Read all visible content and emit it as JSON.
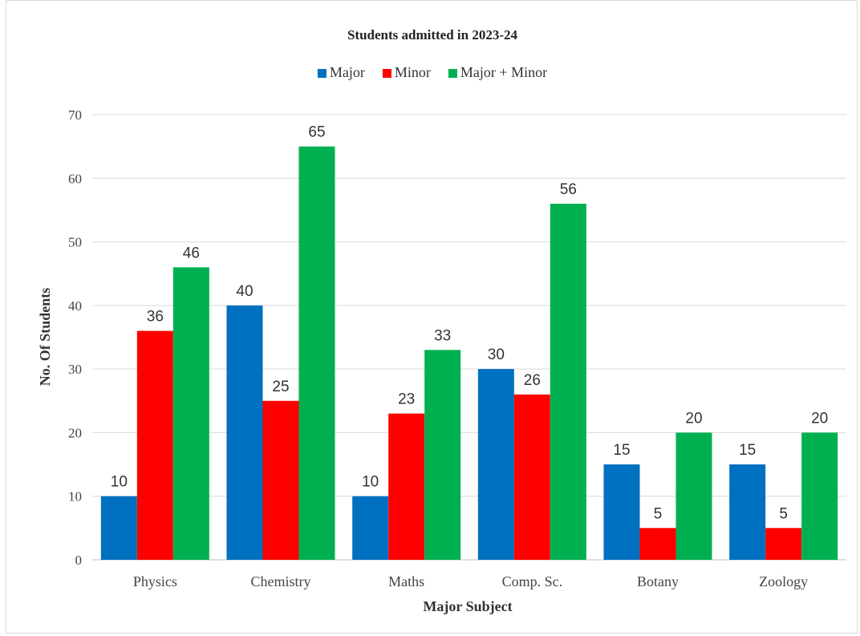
{
  "chart_data": {
    "type": "bar",
    "title": "Students admitted in 2023-24",
    "xlabel": "Major Subject",
    "ylabel": "No. Of Students",
    "categories": [
      "Physics",
      "Chemistry",
      "Maths",
      "Comp. Sc.",
      "Botany",
      "Zoology"
    ],
    "series": [
      {
        "name": "Major",
        "color": "#0070c0",
        "values": [
          10,
          40,
          10,
          30,
          15,
          15
        ]
      },
      {
        "name": "Minor",
        "color": "#ff0000",
        "values": [
          36,
          25,
          23,
          26,
          5,
          5
        ]
      },
      {
        "name": "Major + Minor",
        "color": "#00b050",
        "values": [
          46,
          65,
          33,
          56,
          20,
          20
        ]
      }
    ],
    "ylim": [
      0,
      70
    ],
    "yticks": [
      0,
      10,
      20,
      30,
      40,
      50,
      60,
      70
    ],
    "grid": true,
    "legend_position": "top",
    "data_labels": true
  }
}
